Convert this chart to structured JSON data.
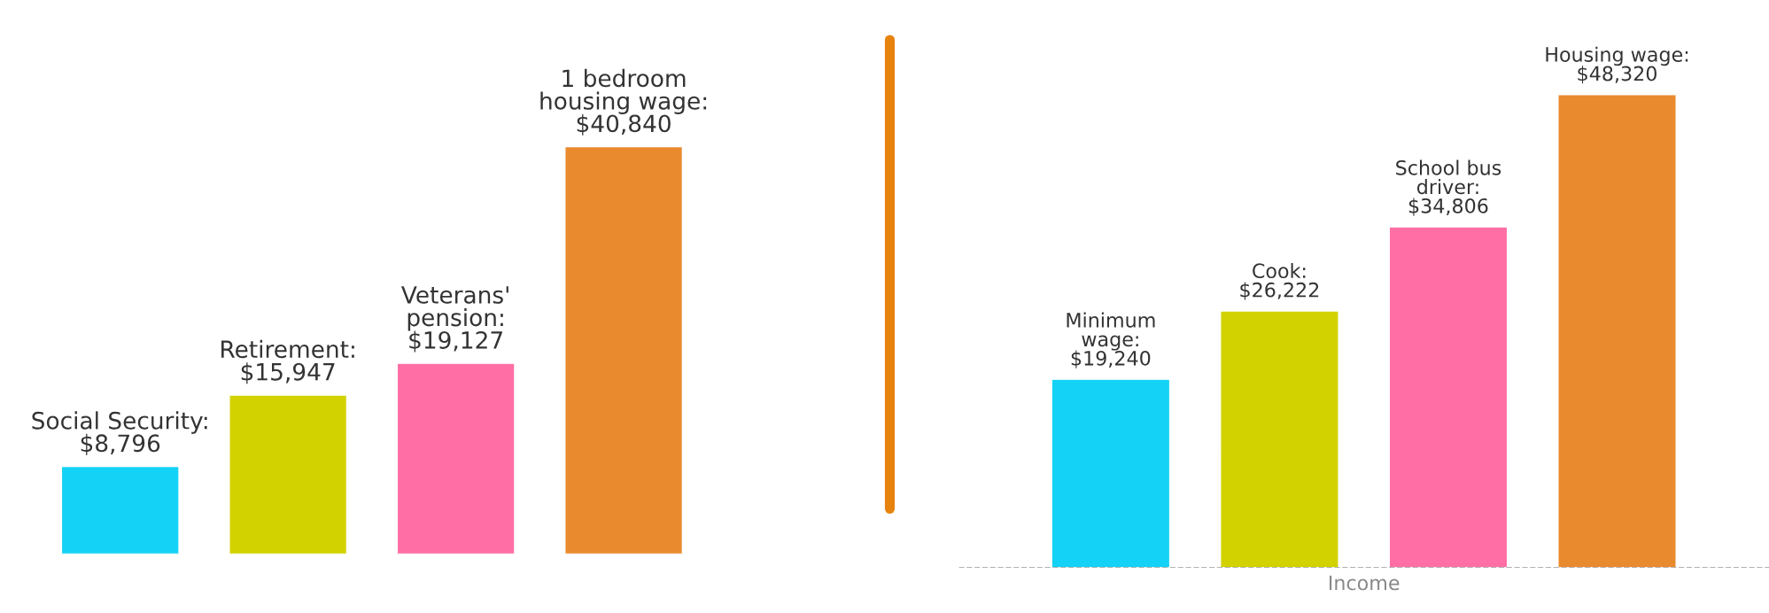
{
  "chart_data": [
    {
      "type": "bar",
      "categories": [
        null,
        null,
        null,
        null
      ],
      "values": [
        8796,
        15947,
        19127,
        40840
      ],
      "value_labels": [
        "Social Security:\n$8,796",
        "Retirement:\n$15,947",
        "Veterans'\npension:\n$19,127",
        "1 bedroom\nhousing wage:\n$40,840"
      ],
      "colors": [
        "#14d2f5",
        "#d2d200",
        "#ff6fa5",
        "#ea8a2e"
      ],
      "tick_labels": false
    },
    {
      "type": "bar",
      "categories": [
        null,
        null,
        null,
        null
      ],
      "values": [
        19240,
        26222,
        34806,
        48320
      ],
      "value_labels": [
        "Minimum\nwage:\n$19,240",
        "Cook:\n$26,222",
        "School bus\ndriver:\n$34,806",
        "Housing wage:\n$48,320"
      ],
      "colors": [
        "#14d2f5",
        "#d2d200",
        "#ff6fa5",
        "#ea8a2e"
      ],
      "xlabel": "Income",
      "ref_lines": [
        {
          "axis": "y",
          "value": 0,
          "color": "#999999",
          "line_style": "dashed"
        }
      ],
      "tick_labels": false
    }
  ]
}
